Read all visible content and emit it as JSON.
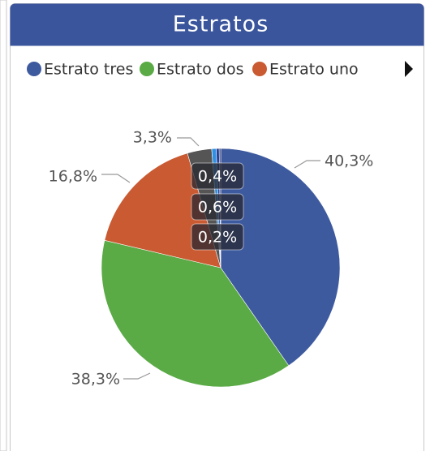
{
  "chart_data": {
    "type": "pie",
    "title": "Estratos",
    "categories": [
      "Estrato tres",
      "Estrato dos",
      "Estrato uno",
      null,
      null,
      null,
      null
    ],
    "values": [
      40.3,
      38.3,
      16.8,
      3.3,
      0.6,
      0.4,
      0.2
    ],
    "value_labels": [
      "40,3%",
      "38,3%",
      "16,8%",
      "3,3%",
      "0,6%",
      "0,4%",
      "0,2%"
    ],
    "colors": [
      "#3e5a9f",
      "#5aaa46",
      "#c95a32",
      "#555555",
      "#2f8fe0",
      "#1f3f9a",
      "#2a2a6a"
    ],
    "legend": "top"
  }
}
